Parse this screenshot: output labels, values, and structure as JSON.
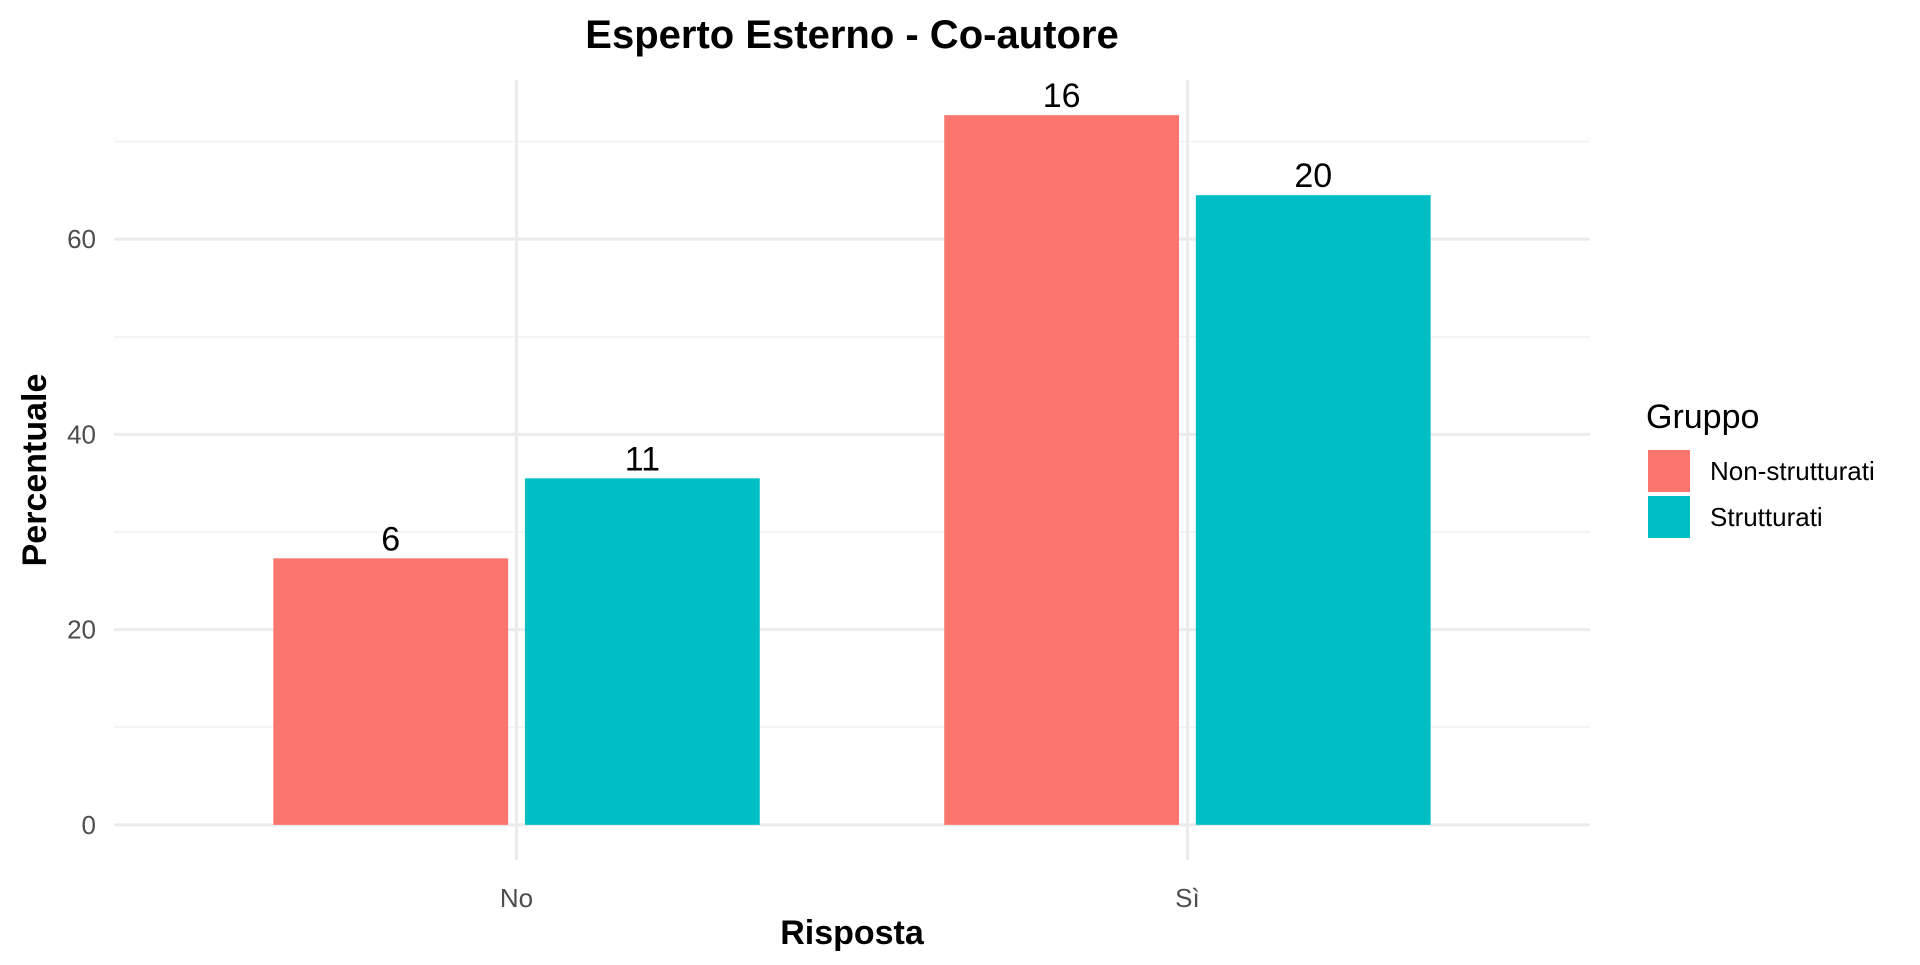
{
  "chart_data": {
    "type": "bar",
    "title": "Esperto Esterno - Co-autore",
    "xlabel": "Risposta",
    "ylabel": "Percentuale",
    "categories": [
      "No",
      "Sì"
    ],
    "series": [
      {
        "name": "Non-strutturati",
        "values": [
          27.3,
          72.7
        ],
        "labels": [
          "6",
          "16"
        ],
        "color": "#F8766D"
      },
      {
        "name": "Strutturati",
        "values": [
          35.5,
          64.5
        ],
        "labels": [
          "11",
          "20"
        ],
        "color": "#00BFC4"
      }
    ],
    "ylim": [
      -3.6,
      76.3
    ],
    "yticks": [
      0,
      20,
      40,
      60
    ],
    "ytick_labels": [
      "0",
      "20",
      "40",
      "60"
    ],
    "grid": true,
    "legend": {
      "title": "Gruppo",
      "placement": "right"
    }
  }
}
